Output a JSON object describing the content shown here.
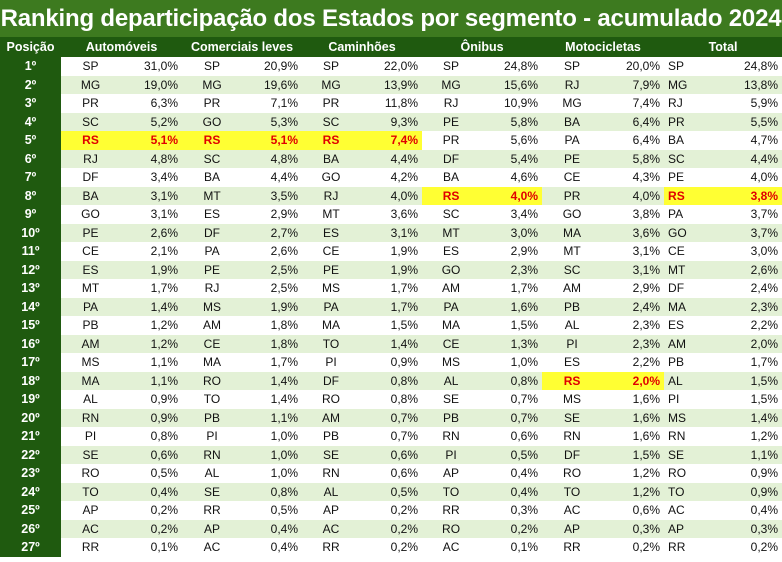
{
  "title": "Ranking departicipação dos Estados por segmento - acumulado 2024",
  "headers": {
    "position": "Posição",
    "segments": [
      "Automóveis",
      "Comerciais leves",
      "Caminhões",
      "Ônibus",
      "Motocicletas",
      "Total"
    ]
  },
  "highlight_state": "RS",
  "colors": {
    "header_bg": "#1f5a0f",
    "title_bg": "#3d7a1f",
    "stripe": "#e3f1d6",
    "highlight_bg": "#ffff33",
    "highlight_text": "#e00000"
  },
  "rows": [
    {
      "pos": "1º",
      "cells": [
        [
          "SP",
          "31,0%"
        ],
        [
          "SP",
          "20,9%"
        ],
        [
          "SP",
          "22,0%"
        ],
        [
          "SP",
          "24,8%"
        ],
        [
          "SP",
          "20,0%"
        ],
        [
          "SP",
          "24,8%"
        ]
      ]
    },
    {
      "pos": "2º",
      "cells": [
        [
          "MG",
          "19,0%"
        ],
        [
          "MG",
          "19,6%"
        ],
        [
          "MG",
          "13,9%"
        ],
        [
          "MG",
          "15,6%"
        ],
        [
          "RJ",
          "7,9%"
        ],
        [
          "MG",
          "13,8%"
        ]
      ]
    },
    {
      "pos": "3º",
      "cells": [
        [
          "PR",
          "6,3%"
        ],
        [
          "PR",
          "7,1%"
        ],
        [
          "PR",
          "11,8%"
        ],
        [
          "RJ",
          "10,9%"
        ],
        [
          "MG",
          "7,4%"
        ],
        [
          "RJ",
          "5,9%"
        ]
      ]
    },
    {
      "pos": "4º",
      "cells": [
        [
          "SC",
          "5,2%"
        ],
        [
          "GO",
          "5,3%"
        ],
        [
          "SC",
          "9,3%"
        ],
        [
          "PE",
          "5,8%"
        ],
        [
          "BA",
          "6,4%"
        ],
        [
          "PR",
          "5,5%"
        ]
      ]
    },
    {
      "pos": "5º",
      "cells": [
        [
          "RS",
          "5,1%"
        ],
        [
          "RS",
          "5,1%"
        ],
        [
          "RS",
          "7,4%"
        ],
        [
          "PR",
          "5,6%"
        ],
        [
          "PA",
          "6,4%"
        ],
        [
          "BA",
          "4,7%"
        ]
      ]
    },
    {
      "pos": "6º",
      "cells": [
        [
          "RJ",
          "4,8%"
        ],
        [
          "SC",
          "4,8%"
        ],
        [
          "BA",
          "4,4%"
        ],
        [
          "DF",
          "5,4%"
        ],
        [
          "PE",
          "5,8%"
        ],
        [
          "SC",
          "4,4%"
        ]
      ]
    },
    {
      "pos": "7º",
      "cells": [
        [
          "DF",
          "3,4%"
        ],
        [
          "BA",
          "4,4%"
        ],
        [
          "GO",
          "4,2%"
        ],
        [
          "BA",
          "4,6%"
        ],
        [
          "CE",
          "4,3%"
        ],
        [
          "PE",
          "4,0%"
        ]
      ]
    },
    {
      "pos": "8º",
      "cells": [
        [
          "BA",
          "3,1%"
        ],
        [
          "MT",
          "3,5%"
        ],
        [
          "RJ",
          "4,0%"
        ],
        [
          "RS",
          "4,0%"
        ],
        [
          "PR",
          "4,0%"
        ],
        [
          "RS",
          "3,8%"
        ]
      ]
    },
    {
      "pos": "9º",
      "cells": [
        [
          "GO",
          "3,1%"
        ],
        [
          "ES",
          "2,9%"
        ],
        [
          "MT",
          "3,6%"
        ],
        [
          "SC",
          "3,4%"
        ],
        [
          "GO",
          "3,8%"
        ],
        [
          "PA",
          "3,7%"
        ]
      ]
    },
    {
      "pos": "10º",
      "cells": [
        [
          "PE",
          "2,6%"
        ],
        [
          "DF",
          "2,7%"
        ],
        [
          "ES",
          "3,1%"
        ],
        [
          "MT",
          "3,0%"
        ],
        [
          "MA",
          "3,6%"
        ],
        [
          "GO",
          "3,7%"
        ]
      ]
    },
    {
      "pos": "11º",
      "cells": [
        [
          "CE",
          "2,1%"
        ],
        [
          "PA",
          "2,6%"
        ],
        [
          "CE",
          "1,9%"
        ],
        [
          "ES",
          "2,9%"
        ],
        [
          "MT",
          "3,1%"
        ],
        [
          "CE",
          "3,0%"
        ]
      ]
    },
    {
      "pos": "12º",
      "cells": [
        [
          "ES",
          "1,9%"
        ],
        [
          "PE",
          "2,5%"
        ],
        [
          "PE",
          "1,9%"
        ],
        [
          "GO",
          "2,3%"
        ],
        [
          "SC",
          "3,1%"
        ],
        [
          "MT",
          "2,6%"
        ]
      ]
    },
    {
      "pos": "13º",
      "cells": [
        [
          "MT",
          "1,7%"
        ],
        [
          "RJ",
          "2,5%"
        ],
        [
          "MS",
          "1,7%"
        ],
        [
          "AM",
          "1,7%"
        ],
        [
          "AM",
          "2,9%"
        ],
        [
          "DF",
          "2,4%"
        ]
      ]
    },
    {
      "pos": "14º",
      "cells": [
        [
          "PA",
          "1,4%"
        ],
        [
          "MS",
          "1,9%"
        ],
        [
          "PA",
          "1,7%"
        ],
        [
          "PA",
          "1,6%"
        ],
        [
          "PB",
          "2,4%"
        ],
        [
          "MA",
          "2,3%"
        ]
      ]
    },
    {
      "pos": "15º",
      "cells": [
        [
          "PB",
          "1,2%"
        ],
        [
          "AM",
          "1,8%"
        ],
        [
          "MA",
          "1,5%"
        ],
        [
          "MA",
          "1,5%"
        ],
        [
          "AL",
          "2,3%"
        ],
        [
          "ES",
          "2,2%"
        ]
      ]
    },
    {
      "pos": "16º",
      "cells": [
        [
          "AM",
          "1,2%"
        ],
        [
          "CE",
          "1,8%"
        ],
        [
          "TO",
          "1,4%"
        ],
        [
          "CE",
          "1,3%"
        ],
        [
          "PI",
          "2,3%"
        ],
        [
          "AM",
          "2,0%"
        ]
      ]
    },
    {
      "pos": "17º",
      "cells": [
        [
          "MS",
          "1,1%"
        ],
        [
          "MA",
          "1,7%"
        ],
        [
          "PI",
          "0,9%"
        ],
        [
          "MS",
          "1,0%"
        ],
        [
          "ES",
          "2,2%"
        ],
        [
          "PB",
          "1,7%"
        ]
      ]
    },
    {
      "pos": "18º",
      "cells": [
        [
          "MA",
          "1,1%"
        ],
        [
          "RO",
          "1,4%"
        ],
        [
          "DF",
          "0,8%"
        ],
        [
          "AL",
          "0,8%"
        ],
        [
          "RS",
          "2,0%"
        ],
        [
          "AL",
          "1,5%"
        ]
      ]
    },
    {
      "pos": "19º",
      "cells": [
        [
          "AL",
          "0,9%"
        ],
        [
          "TO",
          "1,4%"
        ],
        [
          "RO",
          "0,8%"
        ],
        [
          "SE",
          "0,7%"
        ],
        [
          "MS",
          "1,6%"
        ],
        [
          "PI",
          "1,5%"
        ]
      ]
    },
    {
      "pos": "20º",
      "cells": [
        [
          "RN",
          "0,9%"
        ],
        [
          "PB",
          "1,1%"
        ],
        [
          "AM",
          "0,7%"
        ],
        [
          "PB",
          "0,7%"
        ],
        [
          "SE",
          "1,6%"
        ],
        [
          "MS",
          "1,4%"
        ]
      ]
    },
    {
      "pos": "21º",
      "cells": [
        [
          "PI",
          "0,8%"
        ],
        [
          "PI",
          "1,0%"
        ],
        [
          "PB",
          "0,7%"
        ],
        [
          "RN",
          "0,6%"
        ],
        [
          "RN",
          "1,6%"
        ],
        [
          "RN",
          "1,2%"
        ]
      ]
    },
    {
      "pos": "22º",
      "cells": [
        [
          "SE",
          "0,6%"
        ],
        [
          "RN",
          "1,0%"
        ],
        [
          "SE",
          "0,6%"
        ],
        [
          "PI",
          "0,5%"
        ],
        [
          "DF",
          "1,5%"
        ],
        [
          "SE",
          "1,1%"
        ]
      ]
    },
    {
      "pos": "23º",
      "cells": [
        [
          "RO",
          "0,5%"
        ],
        [
          "AL",
          "1,0%"
        ],
        [
          "RN",
          "0,6%"
        ],
        [
          "AP",
          "0,4%"
        ],
        [
          "RO",
          "1,2%"
        ],
        [
          "RO",
          "0,9%"
        ]
      ]
    },
    {
      "pos": "24º",
      "cells": [
        [
          "TO",
          "0,4%"
        ],
        [
          "SE",
          "0,8%"
        ],
        [
          "AL",
          "0,5%"
        ],
        [
          "TO",
          "0,4%"
        ],
        [
          "TO",
          "1,2%"
        ],
        [
          "TO",
          "0,9%"
        ]
      ]
    },
    {
      "pos": "25º",
      "cells": [
        [
          "AP",
          "0,2%"
        ],
        [
          "RR",
          "0,5%"
        ],
        [
          "AP",
          "0,2%"
        ],
        [
          "RR",
          "0,3%"
        ],
        [
          "AC",
          "0,6%"
        ],
        [
          "AC",
          "0,4%"
        ]
      ]
    },
    {
      "pos": "26º",
      "cells": [
        [
          "AC",
          "0,2%"
        ],
        [
          "AP",
          "0,4%"
        ],
        [
          "AC",
          "0,2%"
        ],
        [
          "RO",
          "0,2%"
        ],
        [
          "AP",
          "0,3%"
        ],
        [
          "AP",
          "0,3%"
        ]
      ]
    },
    {
      "pos": "27º",
      "cells": [
        [
          "RR",
          "0,1%"
        ],
        [
          "AC",
          "0,4%"
        ],
        [
          "RR",
          "0,2%"
        ],
        [
          "AC",
          "0,1%"
        ],
        [
          "RR",
          "0,2%"
        ],
        [
          "RR",
          "0,2%"
        ]
      ]
    }
  ]
}
